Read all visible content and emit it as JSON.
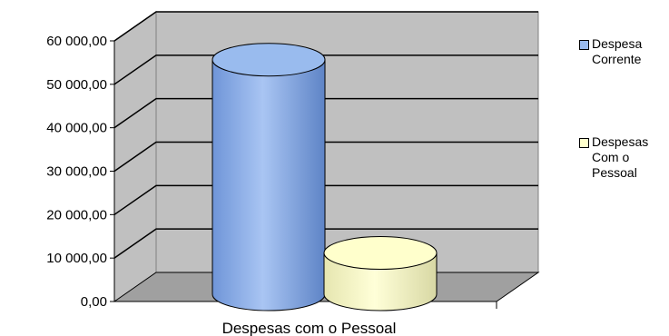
{
  "chart_data": {
    "type": "bar",
    "style": "3d-cylinder",
    "categories": [
      "Despesas com o Pessoal"
    ],
    "series": [
      {
        "name": "Despesa Corrente",
        "values": [
          54000
        ],
        "color": "#99bbee"
      },
      {
        "name": "Despesas Com o Pessoal",
        "values": [
          9500
        ],
        "color": "#ffffcc"
      }
    ],
    "ylim": [
      0,
      60000
    ],
    "yticks": [
      "0,00",
      "10 000,00",
      "20 000,00",
      "30 000,00",
      "40 000,00",
      "50 000,00",
      "60 000,00"
    ],
    "grid": true,
    "legend": "right",
    "wall_color": "#c0c0c0",
    "floor_color": "#a0a0a0"
  }
}
